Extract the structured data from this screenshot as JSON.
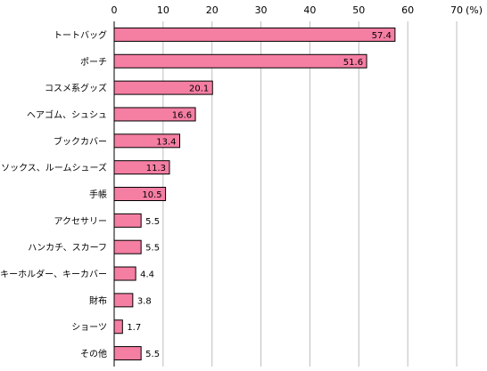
{
  "chart_data": {
    "type": "bar",
    "orientation": "horizontal",
    "title": "",
    "xlabel": "",
    "ylabel": "",
    "unit": "(%)",
    "xlim": [
      0,
      70
    ],
    "xticks": [
      0,
      10,
      20,
      30,
      40,
      50,
      60,
      70
    ],
    "grid": true,
    "legend": "none",
    "bar_color": "#f57ea3",
    "categories": [
      "トートバッグ",
      "ポーチ",
      "コスメ系グッズ",
      "ヘアゴム、シュシュ",
      "ブックカバー",
      "ソックス、ルームシューズ",
      "手帳",
      "アクセサリー",
      "ハンカチ、スカーフ",
      "キーホルダー、キーカバー",
      "財布",
      "ショーツ",
      "その他"
    ],
    "values": [
      57.4,
      51.6,
      20.1,
      16.6,
      13.4,
      11.3,
      10.5,
      5.5,
      5.5,
      4.4,
      3.8,
      1.7,
      5.5
    ],
    "value_labels": [
      "57.4",
      "51.6",
      "20.1",
      "16.6",
      "13.4",
      "11.3",
      "10.5",
      "5.5",
      "5.5",
      "4.4",
      "3.8",
      "1.7",
      "5.5"
    ]
  }
}
